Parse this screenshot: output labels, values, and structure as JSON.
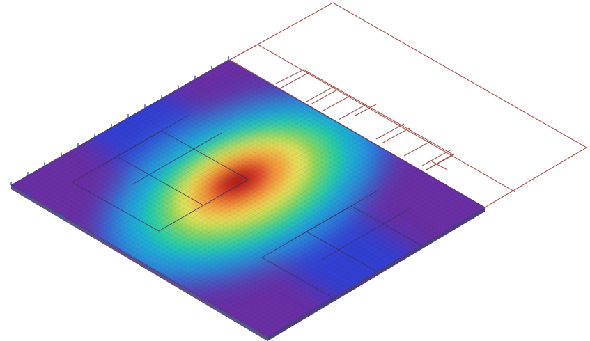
{
  "scene": {
    "kind": "fea-plate-contour",
    "background_color": "#ffffff",
    "wireframe_color": "#a0504a",
    "mesh_line_color": "#3a2f5a",
    "edge_support_color": "#3b4fc8",
    "colormap": [
      "#5a2a8c",
      "#3b3fd0",
      "#2f7fe0",
      "#22b5d8",
      "#2ccf9a",
      "#7cd65a",
      "#e8e25a",
      "#f4a040",
      "#e0402a",
      "#a81818"
    ],
    "regions": [
      {
        "name": "center-peak",
        "level": 1.0
      },
      {
        "name": "left-lobe",
        "level": 0.15
      },
      {
        "name": "right-lobe",
        "level": 0.15
      },
      {
        "name": "plate-edges",
        "level": 0.0
      }
    ]
  }
}
